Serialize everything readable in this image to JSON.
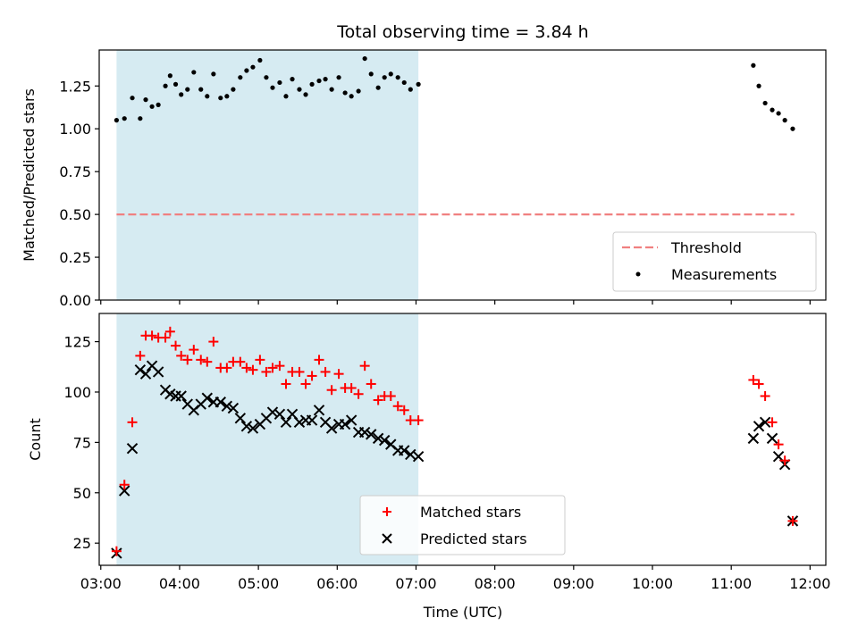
{
  "title": "Total observing time = 3.84 h",
  "colors": {
    "threshold": "#f08080",
    "measurement": "#000000",
    "matched": "#ff0000",
    "predicted": "#000000",
    "shade": "#add8e6"
  },
  "chart_data": [
    {
      "type": "scatter",
      "panel": "top",
      "ylabel": "Matched/Predicted stars",
      "ylim": [
        0,
        1.46
      ],
      "yticks": [
        0.0,
        0.25,
        0.5,
        0.75,
        1.0,
        1.25
      ],
      "ytick_labels": [
        "0.00",
        "0.25",
        "0.50",
        "0.75",
        "1.00",
        "1.25"
      ],
      "shaded_span": [
        3.2,
        7.03
      ],
      "threshold": {
        "name": "Threshold",
        "y": 0.5,
        "x_range": [
          3.2,
          11.8
        ]
      },
      "series": [
        {
          "name": "Measurements",
          "x": [
            3.2,
            3.3,
            3.4,
            3.5,
            3.57,
            3.65,
            3.73,
            3.82,
            3.88,
            3.95,
            4.02,
            4.1,
            4.18,
            4.27,
            4.35,
            4.43,
            4.52,
            4.6,
            4.68,
            4.77,
            4.85,
            4.93,
            5.02,
            5.1,
            5.18,
            5.27,
            5.35,
            5.43,
            5.52,
            5.6,
            5.68,
            5.77,
            5.85,
            5.93,
            6.02,
            6.1,
            6.18,
            6.27,
            6.35,
            6.43,
            6.52,
            6.6,
            6.68,
            6.77,
            6.85,
            6.93,
            7.03,
            11.28,
            11.35,
            11.43,
            11.52,
            11.6,
            11.68,
            11.78
          ],
          "y": [
            1.05,
            1.06,
            1.18,
            1.06,
            1.17,
            1.13,
            1.14,
            1.25,
            1.31,
            1.26,
            1.2,
            1.23,
            1.33,
            1.23,
            1.19,
            1.32,
            1.18,
            1.19,
            1.23,
            1.3,
            1.34,
            1.36,
            1.4,
            1.3,
            1.24,
            1.27,
            1.19,
            1.29,
            1.23,
            1.2,
            1.26,
            1.28,
            1.29,
            1.23,
            1.3,
            1.21,
            1.19,
            1.22,
            1.41,
            1.32,
            1.24,
            1.3,
            1.32,
            1.3,
            1.27,
            1.23,
            1.26,
            1.37,
            1.25,
            1.15,
            1.11,
            1.09,
            1.05,
            1.0
          ]
        }
      ],
      "legend": {
        "position": "lower right",
        "entries": [
          "Threshold",
          "Measurements"
        ]
      }
    },
    {
      "type": "scatter",
      "panel": "bottom",
      "xlabel": "Time (UTC)",
      "ylabel": "Count",
      "ylim": [
        14,
        139
      ],
      "xlim": [
        2.98,
        12.2
      ],
      "yticks": [
        25,
        50,
        75,
        100,
        125
      ],
      "ytick_labels": [
        "25",
        "50",
        "75",
        "100",
        "125"
      ],
      "xticks": [
        3,
        4,
        5,
        6,
        7,
        8,
        9,
        10,
        11,
        12
      ],
      "xtick_labels": [
        "03:00",
        "04:00",
        "05:00",
        "06:00",
        "07:00",
        "08:00",
        "09:00",
        "10:00",
        "11:00",
        "12:00"
      ],
      "shaded_span": [
        3.2,
        7.03
      ],
      "series": [
        {
          "name": "Matched stars",
          "marker": "plus",
          "x": [
            3.2,
            3.3,
            3.4,
            3.5,
            3.57,
            3.65,
            3.73,
            3.82,
            3.88,
            3.95,
            4.02,
            4.1,
            4.18,
            4.27,
            4.35,
            4.43,
            4.52,
            4.6,
            4.68,
            4.77,
            4.85,
            4.93,
            5.02,
            5.1,
            5.18,
            5.27,
            5.35,
            5.43,
            5.52,
            5.6,
            5.68,
            5.77,
            5.85,
            5.93,
            6.02,
            6.1,
            6.18,
            6.27,
            6.35,
            6.43,
            6.52,
            6.6,
            6.68,
            6.77,
            6.85,
            6.93,
            7.03,
            11.28,
            11.35,
            11.43,
            11.52,
            11.6,
            11.68,
            11.78
          ],
          "y": [
            21,
            54,
            85,
            118,
            128,
            128,
            127,
            127,
            130,
            123,
            118,
            116,
            121,
            116,
            115,
            125,
            112,
            112,
            115,
            115,
            112,
            111,
            116,
            110,
            112,
            113,
            104,
            110,
            110,
            104,
            108,
            116,
            110,
            101,
            109,
            102,
            102,
            99,
            113,
            104,
            96,
            98,
            98,
            93,
            91,
            86,
            86,
            106,
            104,
            98,
            85,
            74,
            66,
            36
          ]
        },
        {
          "name": "Predicted stars",
          "marker": "x",
          "x": [
            3.2,
            3.3,
            3.4,
            3.5,
            3.57,
            3.65,
            3.73,
            3.82,
            3.88,
            3.95,
            4.02,
            4.1,
            4.18,
            4.27,
            4.35,
            4.43,
            4.52,
            4.6,
            4.68,
            4.77,
            4.85,
            4.93,
            5.02,
            5.1,
            5.18,
            5.27,
            5.35,
            5.43,
            5.52,
            5.6,
            5.68,
            5.77,
            5.85,
            5.93,
            6.02,
            6.1,
            6.18,
            6.27,
            6.35,
            6.43,
            6.52,
            6.6,
            6.68,
            6.77,
            6.85,
            6.93,
            7.03,
            11.28,
            11.35,
            11.43,
            11.52,
            11.6,
            11.68,
            11.78
          ],
          "y": [
            20,
            51,
            72,
            111,
            109,
            113,
            110,
            101,
            99,
            98,
            98,
            94,
            91,
            94,
            97,
            95,
            95,
            93,
            92,
            87,
            83,
            82,
            84,
            87,
            90,
            89,
            85,
            89,
            85,
            86,
            86,
            91,
            85,
            82,
            84,
            84,
            86,
            80,
            80,
            79,
            77,
            76,
            74,
            71,
            71,
            69,
            68,
            77,
            83,
            85,
            77,
            68,
            64,
            36
          ]
        }
      ],
      "legend": {
        "position": "lower center",
        "entries": [
          "Matched stars",
          "Predicted stars"
        ]
      }
    }
  ]
}
